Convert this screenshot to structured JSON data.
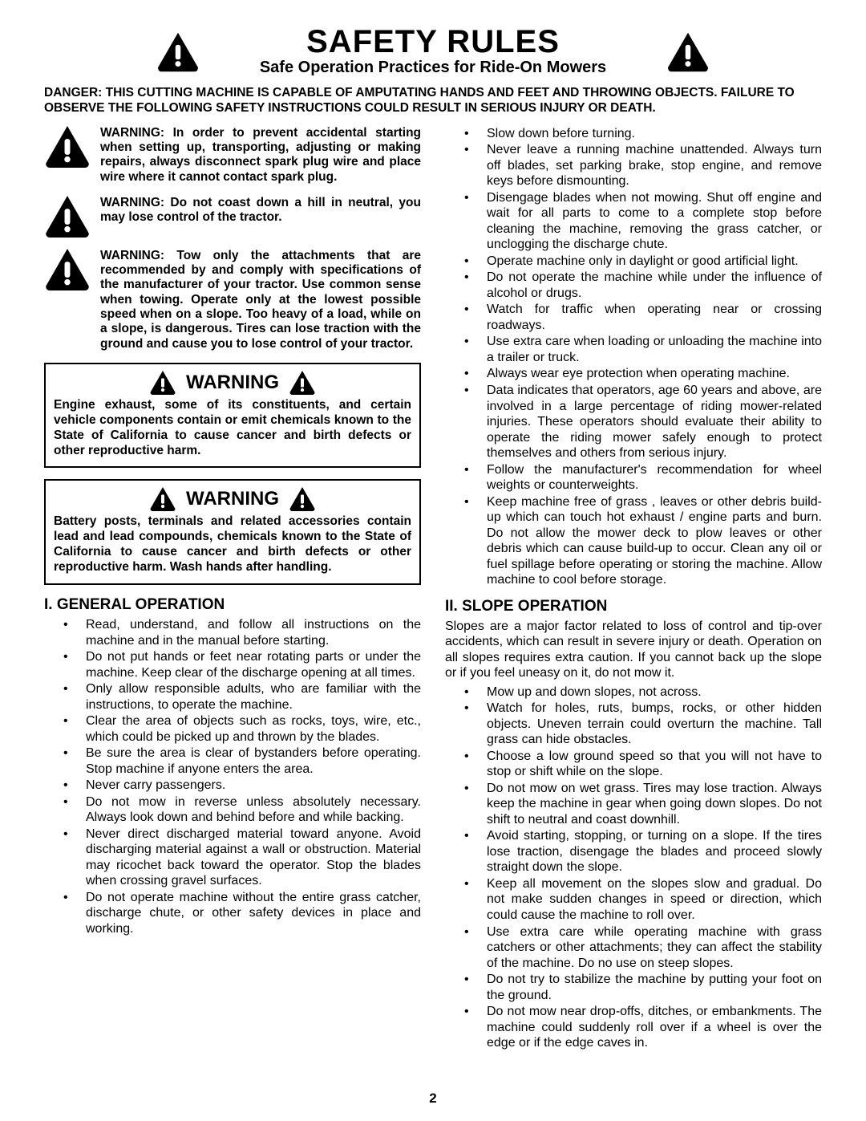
{
  "header": {
    "title": "SAFETY RULES",
    "subtitle": "Safe Operation Practices for Ride-On Mowers"
  },
  "danger": "DANGER:  THIS CUTTING MACHINE IS CAPABLE OF AMPUTATING HANDS AND FEET AND THROWING OBJECTS.  FAILURE TO OBSERVE THE FOLLOWING SAFETY INSTRUCTIONS COULD RESULT IN SERIOUS INJURY OR DEATH.",
  "left": {
    "w1": "WARNING: In order to prevent accidental starting when setting up, transporting, adjusting or making repairs, always disconnect spark plug wire and place wire where it cannot contact spark plug.",
    "w2": "WARNING: Do not coast down a hill in neutral, you may lose control of the tractor.",
    "w3": "WARNING: Tow only the attachments that are recommended by and comply with specifications of the manufacturer of your tractor. Use common sense when towing. Operate only at the lowest possible speed when on a slope.  Too heavy of a load, while on a slope, is dangerous.  Tires can lose traction with the ground and cause you to lose control of your tractor.",
    "box1": {
      "head": "WARNING",
      "body": "Engine exhaust, some of its constituents, and certain vehicle components contain or emit chemicals known to the State of California to cause cancer and birth defects or other reproductive harm."
    },
    "box2": {
      "head": "WARNING",
      "body": "Battery posts, terminals and related accessories contain lead and lead compounds, chemicals known to the State of California to cause cancer and birth defects or other reproductive harm. Wash hands after handling."
    },
    "sec1": {
      "head": "I. GENERAL OPERATION",
      "items": [
        "Read, understand, and follow all instructions on the machine and in the manual before starting.",
        "Do not put hands or feet near rotating parts or under the machine. Keep clear of the discharge opening at all times.",
        "Only allow responsible adults, who are familiar with the instructions, to operate the machine.",
        "Clear the area of objects such as  rocks, toys, wire, etc., which could be picked up and thrown by the blades.",
        "Be sure the area is clear of bystanders before operating.  Stop machine if anyone enters the area.",
        "Never carry passengers.",
        "Do not mow in reverse unless absolutely necessary. Always look down and behind before and while backing.",
        "Never direct discharged material toward anyone. Avoid discharging material against a wall or obstruction. Material may ricochet back toward the operator. Stop the blades when crossing gravel surfaces.",
        "Do not operate machine without the entire grass catcher, discharge chute, or other safety devices in place and working."
      ]
    }
  },
  "right": {
    "cont": [
      "Slow down before turning.",
      "Never leave a running machine unattended.  Always turn off blades, set parking brake, stop engine, and remove keys before dismounting.",
      "Disengage blades when not mowing. Shut off engine and wait for all parts to come to a complete stop before cleaning the machine, removing the grass catcher, or unclogging the discharge chute.",
      "Operate machine only in daylight or good artificial light.",
      "Do not operate the machine while under the influence of alcohol or drugs.",
      "Watch for traffic when operating near or crossing roadways.",
      "Use extra care when loading or unloading the machine into a trailer or truck.",
      "Always wear eye protection when operating machine.",
      "Data indicates that operators, age 60 years and above, are involved in a large percentage of riding mower-related injuries.  These operators should evaluate their ability to operate the riding mower safely enough to protect themselves and others from serious injury.",
      "Follow the manufacturer's recommendation for wheel weights or counterweights.",
      "Keep machine free of grass , leaves or other debris build-up which can touch hot exhaust / engine parts and burn. Do not allow the mower deck to plow leaves or other debris which can cause build-up to occur. Clean any oil or fuel spillage before operating or storing the machine. Allow machine to cool before storage."
    ],
    "sec2": {
      "head": "II. SLOPE OPERATION",
      "intro": "Slopes are a major factor related to loss of control and tip-over accidents, which can result in severe injury or death.  Operation on all slopes requires extra caution.  If you cannot back up the slope or if you feel uneasy on it, do not mow it.",
      "items": [
        "Mow up and down slopes, not across.",
        "Watch for holes, ruts, bumps, rocks, or other hidden objects.  Uneven terrain could overturn the machine. Tall grass can hide obstacles.",
        "Choose a low ground speed so that you will not have to stop or shift while on the slope.",
        "Do not mow on wet grass. Tires may lose traction. Always keep the machine in gear when going down slopes. Do not shift to neutral and coast downhill.",
        "Avoid starting, stopping, or turning on a slope.  If the tires lose traction,  disengage the blades and proceed slowly straight down the slope.",
        "Keep all movement on the slopes slow and gradual. Do not make sudden changes in speed or direction, which could cause the machine to roll over.",
        "Use extra care while operating machine with grass catchers or other attachments; they can affect the stability of the machine. Do no use on steep slopes.",
        "Do not  try to stabilize the machine by putting your foot on the ground.",
        "Do not mow near drop-offs, ditches, or embankments. The machine could suddenly roll over if a wheel is over the edge or if the edge caves in."
      ]
    }
  },
  "page_number": "2",
  "icons": {
    "warn_fill": "#000000",
    "warn_bang": "#ffffff",
    "warn_corner_radius": 6
  }
}
